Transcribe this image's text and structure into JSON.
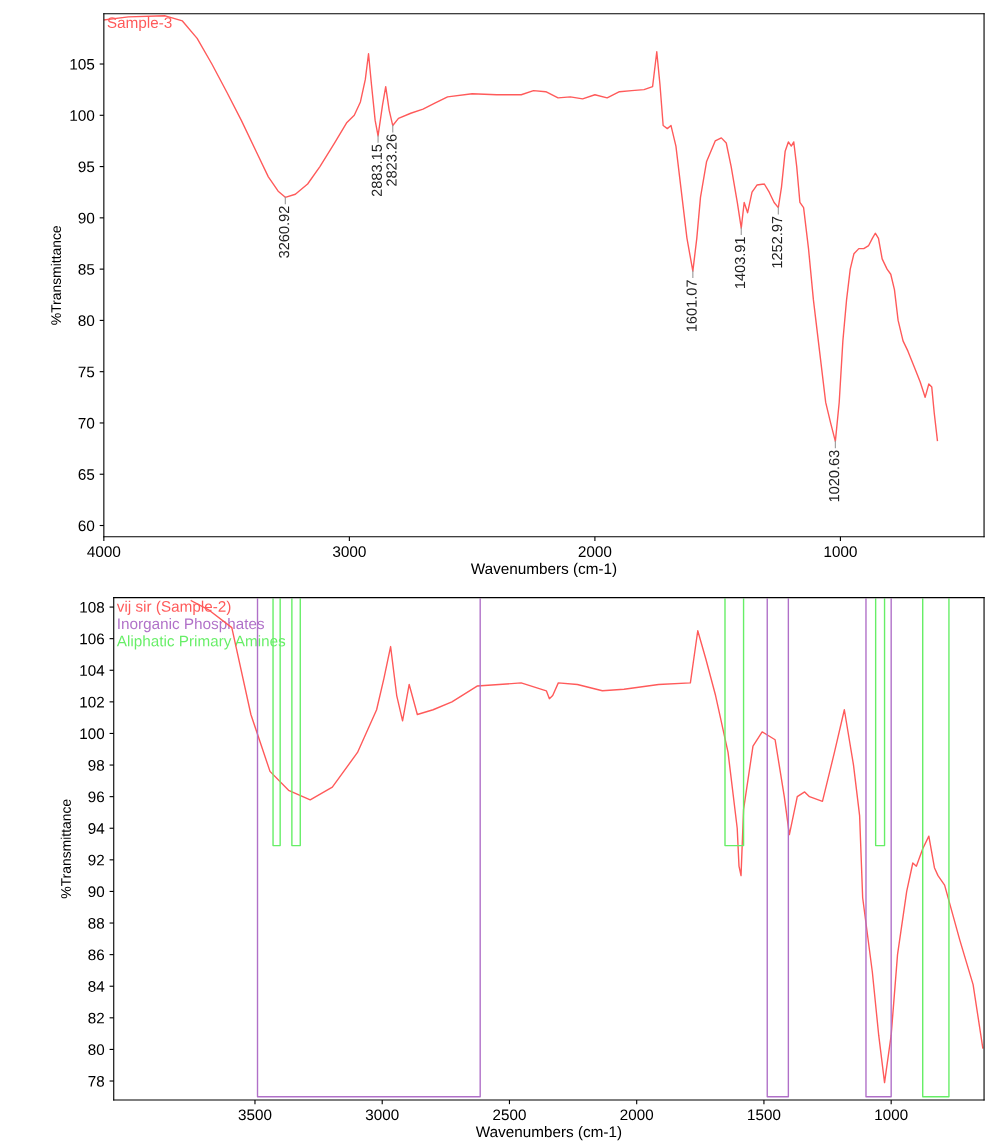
{
  "chart_data": [
    {
      "type": "line",
      "xlabel": "Wavenumbers (cm-1)",
      "ylabel": "%Transmittance",
      "xlim": [
        4000,
        415
      ],
      "ylim": [
        58.9,
        109.9
      ],
      "xticks": [
        4000,
        3000,
        2000,
        1000
      ],
      "yticks": [
        60,
        65,
        70,
        75,
        80,
        85,
        90,
        95,
        100,
        105
      ],
      "grid": false,
      "legend": "top left",
      "marker": "none",
      "line_style": "solid",
      "series": [
        {
          "name": "Sample-3",
          "color": "#ff5a5a",
          "x": [
            4000,
            3900,
            3750,
            3680,
            3620,
            3560,
            3500,
            3440,
            3380,
            3330,
            3290,
            3260.92,
            3220,
            3170,
            3120,
            3060,
            3010,
            2980,
            2955,
            2935,
            2922,
            2910,
            2895,
            2883.15,
            2865,
            2852,
            2838,
            2823.26,
            2800,
            2750,
            2700,
            2650,
            2600,
            2500,
            2400,
            2300,
            2250,
            2200,
            2150,
            2100,
            2050,
            2000,
            1950,
            1900,
            1850,
            1800,
            1765,
            1748,
            1735,
            1722,
            1705,
            1690,
            1670,
            1650,
            1625,
            1601.07,
            1585,
            1570,
            1545,
            1510,
            1485,
            1465,
            1445,
            1420,
            1403.91,
            1392,
            1378,
            1360,
            1340,
            1310,
            1290,
            1270,
            1252.97,
            1240,
            1225,
            1212,
            1200,
            1190,
            1178,
            1165,
            1150,
            1130,
            1110,
            1085,
            1060,
            1040,
            1020.63,
            1005,
            990,
            975,
            960,
            945,
            925,
            905,
            885,
            870,
            858,
            845,
            830,
            810,
            795,
            780,
            765,
            745,
            725,
            700,
            675,
            655,
            640,
            628,
            618,
            605
          ],
          "values": [
            109.3,
            109.6,
            109.7,
            109.2,
            107.5,
            105,
            102.3,
            99.5,
            96.5,
            94,
            92.6,
            92,
            92.3,
            93.3,
            95,
            97.3,
            99.3,
            100,
            101.3,
            103.5,
            106,
            103,
            99.5,
            98,
            101,
            102.8,
            100.5,
            99,
            99.7,
            100.2,
            100.6,
            101.2,
            101.8,
            102.1,
            102,
            102,
            102.4,
            102.3,
            101.7,
            101.8,
            101.6,
            102,
            101.7,
            102.3,
            102.4,
            102.5,
            102.8,
            106.2,
            103,
            99,
            98.7,
            99,
            97,
            93,
            88,
            84.8,
            88,
            92,
            95.5,
            97.5,
            97.8,
            97.3,
            95,
            91.5,
            89,
            91.5,
            90.5,
            92.5,
            93.2,
            93.3,
            92.5,
            91.5,
            91,
            93,
            96.5,
            97.4,
            97,
            97.4,
            95,
            91.5,
            91,
            87,
            82,
            77,
            72,
            70,
            68.2,
            72,
            78,
            82,
            85,
            86.5,
            87,
            87,
            87.3,
            88,
            88.5,
            88,
            86,
            85,
            84.5,
            83,
            80,
            78,
            77,
            75.5,
            74,
            72.5,
            73.8,
            73.5,
            71,
            68.3
          ]
        }
      ],
      "annotations": [
        {
          "text": "3260.92",
          "x": 3260.92,
          "y": 92
        },
        {
          "text": "2883.15",
          "x": 2883.15,
          "y": 98
        },
        {
          "text": "2823.26",
          "x": 2823.26,
          "y": 99
        },
        {
          "text": "1601.07",
          "x": 1601.07,
          "y": 84.8
        },
        {
          "text": "1403.91",
          "x": 1403.91,
          "y": 89
        },
        {
          "text": "1252.97",
          "x": 1252.97,
          "y": 91
        },
        {
          "text": "1020.63",
          "x": 1020.63,
          "y": 68.2
        }
      ]
    },
    {
      "type": "line",
      "xlabel": "Wavenumbers (cm-1)",
      "ylabel": "%Transmittance",
      "xlim": [
        4055,
        635
      ],
      "ylim": [
        76.8,
        108.6
      ],
      "xticks": [
        3500,
        3000,
        2500,
        2000,
        1500,
        1000
      ],
      "yticks": [
        78,
        80,
        82,
        84,
        86,
        88,
        90,
        92,
        94,
        96,
        98,
        100,
        102,
        104,
        106,
        108
      ],
      "grid": false,
      "legend": "top left",
      "marker": "none",
      "line_style": "solid",
      "series": [
        {
          "name": "vij sir (Sample-2)",
          "color": "#ff5a5a",
          "x": [
            3750,
            3680,
            3591,
            3516,
            3441,
            3368,
            3283,
            3196,
            3097,
            3022,
            2993,
            2967,
            2943,
            2920,
            2894,
            2862,
            2800,
            2726,
            2627,
            2454,
            2355,
            2343,
            2330,
            2308,
            2233,
            2135,
            2050,
            1914,
            1789,
            1760,
            1728,
            1690,
            1641,
            1605,
            1598,
            1590,
            1580,
            1543,
            1507,
            1456,
            1420,
            1400,
            1369,
            1340,
            1321,
            1270,
            1223,
            1184,
            1148,
            1124,
            1112,
            1074,
            1049,
            1026,
            1000,
            975,
            939,
            915,
            901,
            876,
            852,
            830,
            816,
            790,
            730,
            678,
            640
          ],
          "values": [
            108.4,
            107.8,
            106.7,
            101.2,
            97.6,
            96.4,
            95.8,
            96.6,
            98.8,
            101.5,
            103.5,
            105.5,
            102.4,
            100.8,
            103.1,
            101.2,
            101.5,
            102,
            103,
            103.2,
            102.7,
            102.2,
            102.4,
            103.2,
            103.1,
            102.7,
            102.8,
            103.1,
            103.2,
            106.5,
            104.7,
            102.4,
            98.8,
            94,
            91.6,
            91,
            95.2,
            99.2,
            100.1,
            99.6,
            96,
            93.6,
            96,
            96.3,
            96,
            95.7,
            98.8,
            101.5,
            98,
            94.8,
            89.6,
            84.9,
            80.9,
            77.9,
            80.9,
            86,
            90,
            91.8,
            91.6,
            92.7,
            93.5,
            91.5,
            91,
            90.4,
            86.9,
            84.1,
            80.1
          ]
        },
        {
          "name": "Inorganic Phosphates",
          "color": "#b070c8",
          "x": [
            3490,
            3490,
            2615,
            2615,
            null,
            1487,
            1487,
            1404,
            1404,
            null,
            1099,
            1099,
            1000,
            1000
          ],
          "values": [
            108.5,
            77,
            77,
            108.5,
            null,
            108.5,
            77,
            77,
            108.5,
            null,
            108.5,
            77,
            77,
            108.5
          ]
        },
        {
          "name": "Aliphatic Primary Amines",
          "color": "#66ee66",
          "x": [
            3429,
            3429,
            3401,
            3401,
            null,
            3355,
            3355,
            3322,
            3322,
            null,
            1653,
            1653,
            1580,
            1580,
            null,
            1061,
            1061,
            1026,
            1026,
            null,
            876,
            876,
            773,
            773
          ],
          "values": [
            108.5,
            92.9,
            92.9,
            108.5,
            null,
            108.5,
            92.9,
            92.9,
            108.5,
            null,
            108.5,
            92.9,
            92.9,
            108.5,
            null,
            108.5,
            92.9,
            92.9,
            108.5,
            null,
            108.5,
            77,
            77,
            108.5
          ]
        }
      ]
    }
  ]
}
